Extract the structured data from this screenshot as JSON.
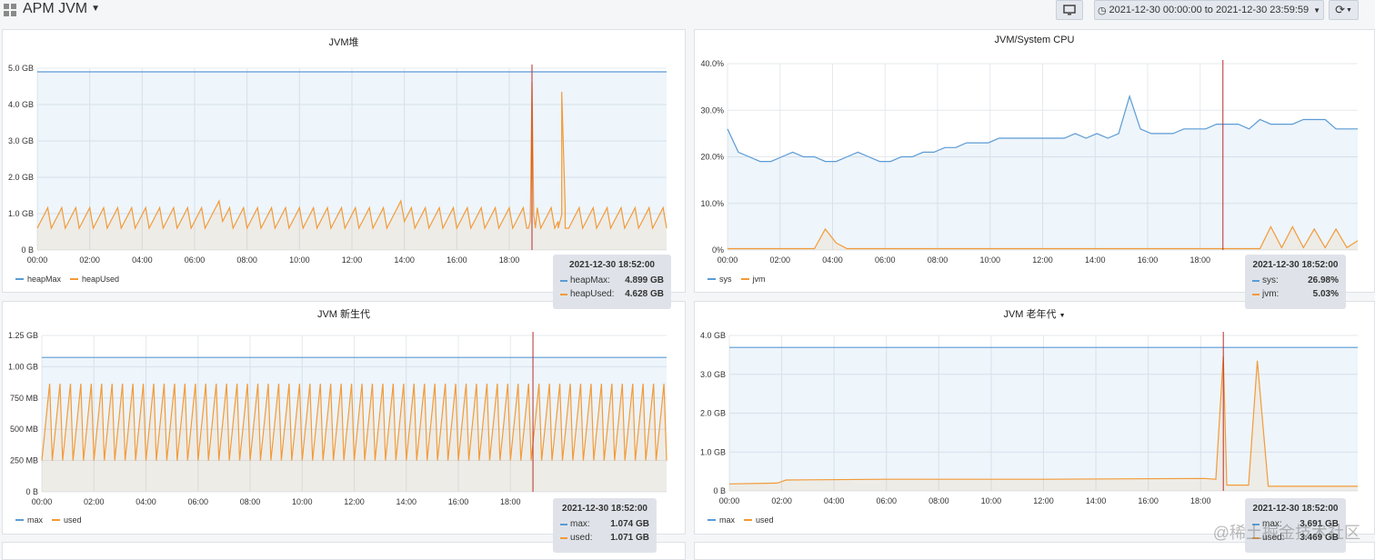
{
  "header": {
    "title": "APM JVM",
    "time_range": "2021-12-30 00:00:00 to 2021-12-30 23:59:59"
  },
  "colors": {
    "blue": "#5b9bd5",
    "orange": "#f29b39",
    "crosshair": "#b82e2e"
  },
  "x_ticks": [
    "00:00",
    "02:00",
    "04:00",
    "06:00",
    "08:00",
    "10:00",
    "12:00",
    "14:00",
    "16:00",
    "18:00"
  ],
  "panels": [
    {
      "title": "JVM堆",
      "y_ticks": [
        "5.0 GB",
        "4.0 GB",
        "3.0 GB",
        "2.0 GB",
        "1.0 GB",
        "0 B"
      ],
      "legend": [
        "heapMax",
        "heapUsed"
      ],
      "tooltip": {
        "time": "2021-12-30 18:52:00",
        "rows": [
          {
            "name": "heapMax:",
            "value": "4.899 GB"
          },
          {
            "name": "heapUsed:",
            "value": "4.628 GB"
          }
        ]
      }
    },
    {
      "title": "JVM/System CPU",
      "y_ticks": [
        "40.0%",
        "30.0%",
        "20.0%",
        "10.0%",
        "0%"
      ],
      "legend": [
        "sys",
        "jvm"
      ],
      "tooltip": {
        "time": "2021-12-30 18:52:00",
        "rows": [
          {
            "name": "sys:",
            "value": "26.98%"
          },
          {
            "name": "jvm:",
            "value": "5.03%"
          }
        ]
      }
    },
    {
      "title": "JVM 新生代",
      "y_ticks": [
        "1.25 GB",
        "1.00 GB",
        "750 MB",
        "500 MB",
        "250 MB",
        "0 B"
      ],
      "legend": [
        "max",
        "used"
      ],
      "tooltip": {
        "time": "2021-12-30 18:52:00",
        "rows": [
          {
            "name": "max:",
            "value": "1.074 GB"
          },
          {
            "name": "used:",
            "value": "1.071 GB"
          }
        ]
      }
    },
    {
      "title": "JVM 老年代",
      "y_ticks": [
        "4.0 GB",
        "3.0 GB",
        "2.0 GB",
        "1.0 GB",
        "0 B"
      ],
      "legend": [
        "max",
        "used"
      ],
      "tooltip": {
        "time": "2021-12-30 18:52:00",
        "rows": [
          {
            "name": "max:",
            "value": "3.691 GB"
          },
          {
            "name": "used:",
            "value": "3.469 GB"
          }
        ]
      }
    }
  ],
  "chart_data": [
    {
      "type": "area",
      "title": "JVM堆",
      "x_range": [
        "00:00",
        "24:00"
      ],
      "ylim": [
        0,
        5.0
      ],
      "unit": "GB",
      "series": [
        {
          "name": "heapMax",
          "constant": 4.9
        },
        {
          "name": "heapUsed",
          "pattern": "sawtooth",
          "low": 0.6,
          "high": 1.35,
          "cycles": 45,
          "spikes": [
            {
              "x": "18:52",
              "y": 4.628
            },
            {
              "x": "20:00",
              "y": 4.35
            }
          ]
        }
      ],
      "crosshair_x": "18:52"
    },
    {
      "type": "area",
      "title": "JVM/System CPU",
      "x_range": [
        "00:00",
        "24:00"
      ],
      "ylim": [
        0,
        40
      ],
      "unit": "%",
      "series": [
        {
          "name": "sys",
          "values": [
            26,
            21,
            20,
            19,
            19,
            20,
            21,
            20,
            20,
            19,
            19,
            20,
            21,
            20,
            19,
            19,
            20,
            20,
            21,
            21,
            22,
            22,
            23,
            23,
            23,
            24,
            24,
            24,
            24,
            24,
            24,
            24,
            25,
            24,
            25,
            24,
            25,
            33,
            26,
            25,
            25,
            25,
            26,
            26,
            26,
            27,
            27,
            27,
            26,
            28,
            27,
            27,
            27,
            28,
            28,
            28,
            26,
            26,
            26
          ]
        },
        {
          "name": "jvm",
          "values": [
            0.3,
            0.3,
            0.3,
            0.3,
            0.3,
            0.3,
            0.3,
            0.3,
            0.3,
            4.5,
            1.5,
            0.3,
            0.3,
            0.3,
            0.3,
            0.3,
            0.3,
            0.3,
            0.3,
            0.3,
            0.3,
            0.3,
            0.3,
            0.3,
            0.3,
            0.3,
            0.3,
            0.3,
            0.3,
            0.3,
            0.3,
            0.3,
            0.3,
            0.3,
            0.3,
            0.3,
            0.3,
            0.3,
            0.3,
            0.3,
            0.3,
            0.3,
            0.3,
            0.3,
            0.3,
            0.3,
            0.3,
            0.3,
            0.3,
            0.3,
            5.0,
            0.5,
            5.0,
            0.5,
            4.5,
            0.5,
            4.5,
            0.5,
            2.0
          ]
        }
      ],
      "crosshair_x": "18:52"
    },
    {
      "type": "area",
      "title": "JVM 新生代",
      "x_range": [
        "00:00",
        "24:00"
      ],
      "ylim": [
        0,
        1.25
      ],
      "unit": "GB",
      "series": [
        {
          "name": "max",
          "constant": 1.074
        },
        {
          "name": "used",
          "pattern": "sawtooth",
          "low": 0.25,
          "high": 1.07,
          "cycles": 60
        }
      ],
      "crosshair_x": "18:52"
    },
    {
      "type": "area",
      "title": "JVM 老年代",
      "x_range": [
        "00:00",
        "24:00"
      ],
      "ylim": [
        0,
        4.0
      ],
      "unit": "GB",
      "series": [
        {
          "name": "max",
          "constant": 3.691
        },
        {
          "name": "used",
          "points": [
            [
              "00:00",
              0.18
            ],
            [
              "01:50",
              0.2
            ],
            [
              "02:10",
              0.28
            ],
            [
              "06:00",
              0.3
            ],
            [
              "12:00",
              0.3
            ],
            [
              "18:10",
              0.32
            ],
            [
              "18:35",
              0.3
            ],
            [
              "18:52",
              3.469
            ],
            [
              "19:00",
              0.15
            ],
            [
              "19:50",
              0.15
            ],
            [
              "20:10",
              3.35
            ],
            [
              "20:35",
              0.12
            ],
            [
              "24:00",
              0.12
            ]
          ]
        }
      ],
      "crosshair_x": "18:52"
    }
  ],
  "watermark": "@稀土掘金技术社区"
}
